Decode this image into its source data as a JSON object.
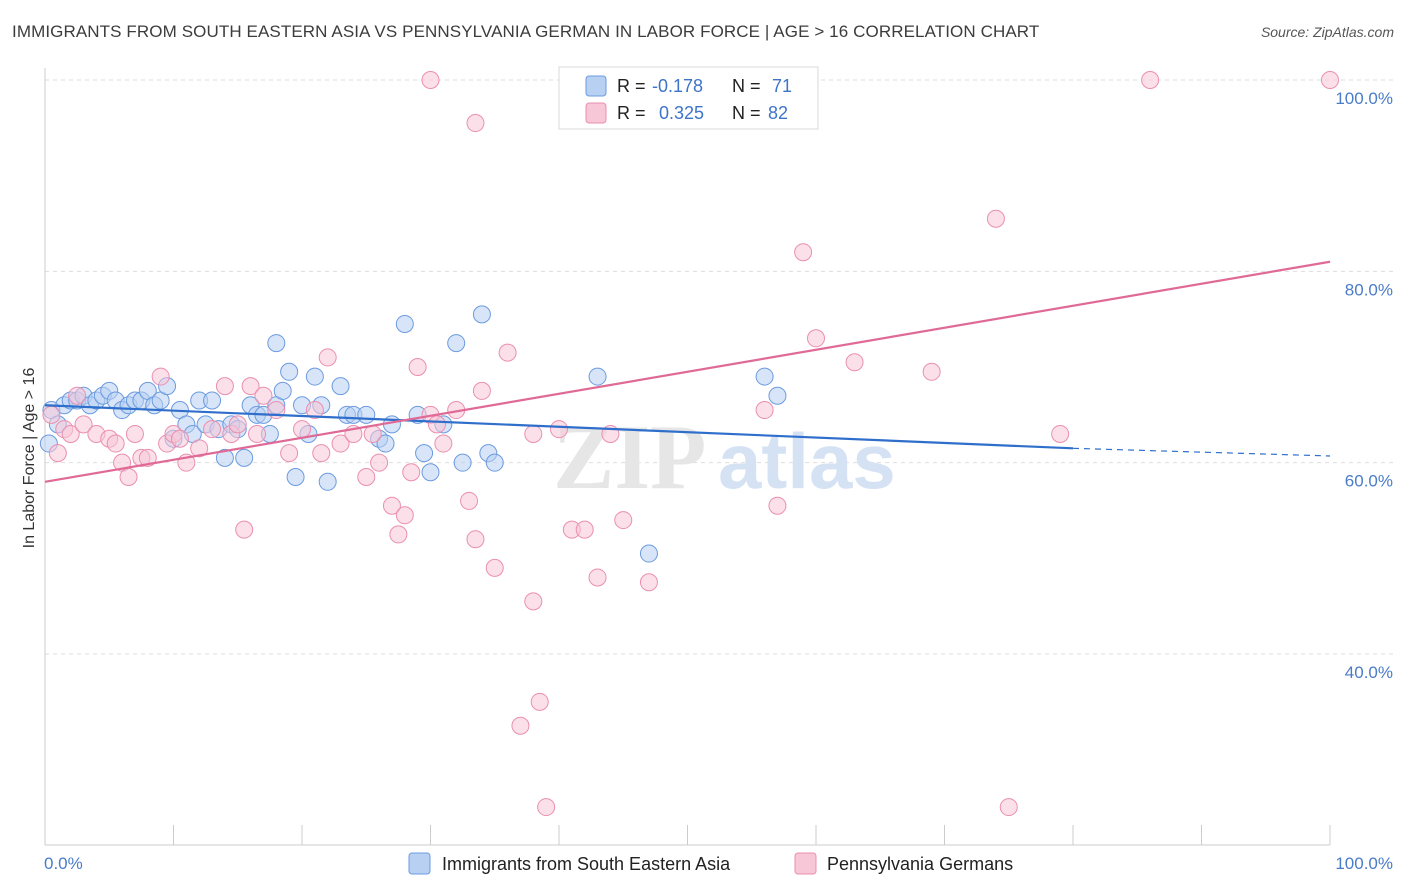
{
  "title": "IMMIGRANTS FROM SOUTH EASTERN ASIA VS PENNSYLVANIA GERMAN IN LABOR FORCE | AGE > 16 CORRELATION CHART",
  "source": "Source: ZipAtlas.com",
  "watermark": {
    "zip": "ZIP",
    "atlas": "atlas"
  },
  "chart_data": {
    "type": "scatter",
    "ylabel": "In Labor Force | Age > 16",
    "xlim": [
      0,
      100
    ],
    "ylim": [
      20,
      100
    ],
    "x_tick_labels": [
      "0.0%",
      "100.0%"
    ],
    "y_ticks": [
      {
        "value": 40,
        "label": "40.0%"
      },
      {
        "value": 60,
        "label": "60.0%"
      },
      {
        "value": 80,
        "label": "80.0%"
      },
      {
        "value": 100,
        "label": "100.0%"
      }
    ],
    "grid": "horizontal dashed",
    "legend_placement": "top-center",
    "stats": [
      {
        "r_label": "R =",
        "r_value": "-0.178",
        "n_label": "N =",
        "n_value": "71"
      },
      {
        "r_label": "R =",
        "r_value": "0.325",
        "n_label": "N =",
        "n_value": "82"
      }
    ],
    "series": [
      {
        "name": "Immigrants from South Eastern Asia",
        "color": "#6b9be0",
        "fill": "#b8d0f2",
        "trend": {
          "x": [
            0,
            80
          ],
          "y": [
            66.0,
            61.5
          ],
          "dashed_to": [
            100,
            60.7
          ],
          "color": "#2f6fcb"
        },
        "points": [
          [
            0.5,
            65.5
          ],
          [
            1,
            64
          ],
          [
            1.5,
            66
          ],
          [
            2,
            66.5
          ],
          [
            2.5,
            66.5
          ],
          [
            3,
            67
          ],
          [
            3.5,
            66
          ],
          [
            4,
            66.5
          ],
          [
            4.5,
            67
          ],
          [
            5,
            67.5
          ],
          [
            5.5,
            66.5
          ],
          [
            6,
            65.5
          ],
          [
            6.5,
            66
          ],
          [
            7,
            66.5
          ],
          [
            7.5,
            66.5
          ],
          [
            8,
            67.5
          ],
          [
            8.5,
            66
          ],
          [
            9,
            66.5
          ],
          [
            9.5,
            68
          ],
          [
            10,
            62.5
          ],
          [
            10.5,
            65.5
          ],
          [
            11,
            64
          ],
          [
            11.5,
            63
          ],
          [
            12,
            66.5
          ],
          [
            12.5,
            64
          ],
          [
            13,
            66.5
          ],
          [
            13.5,
            63.5
          ],
          [
            14,
            60.5
          ],
          [
            14.5,
            64
          ],
          [
            15,
            63.5
          ],
          [
            15.5,
            60.5
          ],
          [
            16,
            66
          ],
          [
            16.5,
            65
          ],
          [
            17,
            65
          ],
          [
            17.5,
            63
          ],
          [
            18,
            66
          ],
          [
            18.5,
            67.5
          ],
          [
            19,
            69.5
          ],
          [
            19.5,
            58.5
          ],
          [
            20,
            66
          ],
          [
            20.5,
            63
          ],
          [
            21,
            69
          ],
          [
            21.5,
            66
          ],
          [
            22,
            58
          ],
          [
            23,
            68
          ],
          [
            23.5,
            65
          ],
          [
            24,
            65
          ],
          [
            25,
            65
          ],
          [
            26,
            62.5
          ],
          [
            26.5,
            62
          ],
          [
            27,
            64
          ],
          [
            28,
            74.5
          ],
          [
            29,
            65
          ],
          [
            29.5,
            61
          ],
          [
            30,
            59
          ],
          [
            31,
            64
          ],
          [
            32,
            72.5
          ],
          [
            32.5,
            60
          ],
          [
            34,
            75.5
          ],
          [
            34.5,
            61
          ],
          [
            35,
            60
          ],
          [
            43,
            69
          ],
          [
            47,
            50.5
          ],
          [
            56,
            69
          ],
          [
            57,
            67
          ],
          [
            18,
            72.5
          ],
          [
            0.3,
            62
          ]
        ]
      },
      {
        "name": "Pennsylvania Germans",
        "color": "#ea8fb0",
        "fill": "#f7c6d7",
        "trend": {
          "x": [
            0,
            100
          ],
          "y": [
            58.0,
            81.0
          ],
          "color": "#e06a96"
        },
        "points": [
          [
            0.5,
            65
          ],
          [
            1,
            61
          ],
          [
            1.5,
            63.5
          ],
          [
            2,
            63
          ],
          [
            3,
            64
          ],
          [
            4,
            63
          ],
          [
            5,
            62.5
          ],
          [
            5.5,
            62
          ],
          [
            6,
            60
          ],
          [
            6.5,
            58.5
          ],
          [
            7,
            63
          ],
          [
            7.5,
            60.5
          ],
          [
            8,
            60.5
          ],
          [
            9,
            69
          ],
          [
            9.5,
            62
          ],
          [
            10,
            63
          ],
          [
            10.5,
            62.5
          ],
          [
            11,
            60
          ],
          [
            12,
            61.5
          ],
          [
            13,
            63.5
          ],
          [
            14,
            68
          ],
          [
            14.5,
            63
          ],
          [
            15,
            64
          ],
          [
            15.5,
            53
          ],
          [
            16,
            68
          ],
          [
            16.5,
            63
          ],
          [
            17,
            67
          ],
          [
            18,
            65.5
          ],
          [
            19,
            61
          ],
          [
            20,
            63.5
          ],
          [
            21,
            65.5
          ],
          [
            21.5,
            61
          ],
          [
            22,
            71
          ],
          [
            23,
            62
          ],
          [
            24,
            63
          ],
          [
            25,
            58.5
          ],
          [
            25.5,
            63
          ],
          [
            26,
            60
          ],
          [
            27,
            55.5
          ],
          [
            27.5,
            52.5
          ],
          [
            28,
            54.5
          ],
          [
            28.5,
            59
          ],
          [
            29,
            70
          ],
          [
            30,
            65
          ],
          [
            30.5,
            64
          ],
          [
            31,
            62
          ],
          [
            32,
            65.5
          ],
          [
            33,
            56
          ],
          [
            33.5,
            52
          ],
          [
            34,
            67.5
          ],
          [
            35,
            49
          ],
          [
            36,
            71.5
          ],
          [
            37,
            32.5
          ],
          [
            38,
            45.5
          ],
          [
            38.5,
            35
          ],
          [
            39,
            24
          ],
          [
            40,
            63.5
          ],
          [
            41,
            53
          ],
          [
            42,
            53
          ],
          [
            43,
            48
          ],
          [
            44,
            63
          ],
          [
            45,
            54
          ],
          [
            47,
            47.5
          ],
          [
            48,
            96
          ],
          [
            50,
            99
          ],
          [
            56,
            65.5
          ],
          [
            57,
            55.5
          ],
          [
            59,
            82
          ],
          [
            60,
            73
          ],
          [
            63,
            70.5
          ],
          [
            69,
            69.5
          ],
          [
            74,
            85.5
          ],
          [
            75,
            24
          ],
          [
            79,
            63
          ],
          [
            86,
            100
          ],
          [
            100,
            100
          ],
          [
            30,
            100
          ],
          [
            33.5,
            95.5
          ],
          [
            38,
            63
          ],
          [
            2.5,
            67
          ]
        ]
      }
    ]
  }
}
